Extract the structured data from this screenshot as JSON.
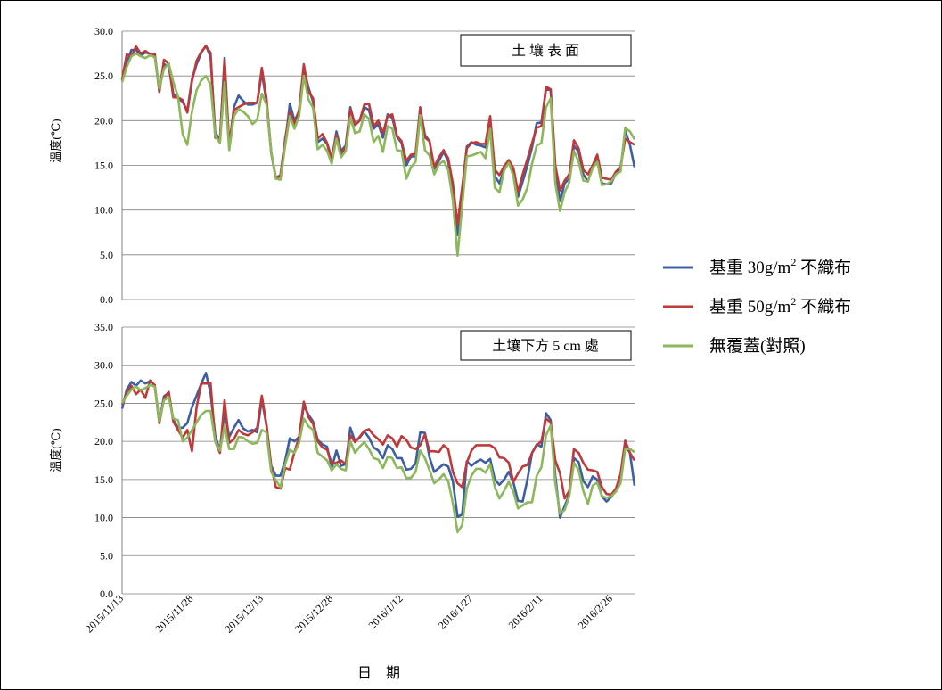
{
  "chart_data": [
    {
      "type": "line",
      "panel_label": "土 壤 表 面",
      "ylabel": "溫度(℃)",
      "ylim": [
        0,
        30
      ],
      "yticks": [
        "0.0",
        "5.0",
        "10.0",
        "15.0",
        "20.0",
        "25.0",
        "30.0"
      ],
      "grid": true,
      "x": [
        "2015/11/13",
        "2015/11/14",
        "2015/11/15",
        "2015/11/16",
        "2015/11/17",
        "2015/11/18",
        "2015/11/19",
        "2015/11/20",
        "2015/11/21",
        "2015/11/22",
        "2015/11/23",
        "2015/11/24",
        "2015/11/25",
        "2015/11/26",
        "2015/11/27",
        "2015/11/28",
        "2015/11/29",
        "2015/11/30",
        "2015/12/01",
        "2015/12/02",
        "2015/12/03",
        "2015/12/04",
        "2015/12/05",
        "2015/12/06",
        "2015/12/07",
        "2015/12/08",
        "2015/12/09",
        "2015/12/10",
        "2015/12/11",
        "2015/12/12",
        "2015/12/13",
        "2015/12/14",
        "2015/12/15",
        "2015/12/16",
        "2015/12/17",
        "2015/12/18",
        "2015/12/19",
        "2015/12/20",
        "2015/12/21",
        "2015/12/22",
        "2015/12/23",
        "2015/12/24",
        "2015/12/25",
        "2015/12/26",
        "2015/12/27",
        "2015/12/28",
        "2015/12/29",
        "2015/12/30",
        "2015/12/31",
        "2016/01/01",
        "2016/01/02",
        "2016/01/03",
        "2016/01/04",
        "2016/01/05",
        "2016/01/06",
        "2016/01/07",
        "2016/01/08",
        "2016/01/09",
        "2016/01/10",
        "2016/01/11",
        "2016/01/12",
        "2016/01/13",
        "2016/01/14",
        "2016/01/15",
        "2016/01/16",
        "2016/01/17",
        "2016/01/18",
        "2016/01/19",
        "2016/01/20",
        "2016/01/21",
        "2016/01/22",
        "2016/01/23",
        "2016/01/24",
        "2016/01/25",
        "2016/01/26",
        "2016/01/27",
        "2016/01/28",
        "2016/01/29",
        "2016/01/30",
        "2016/01/31",
        "2016/02/01",
        "2016/02/02",
        "2016/02/03",
        "2016/02/04",
        "2016/02/05",
        "2016/02/06",
        "2016/02/07",
        "2016/02/08",
        "2016/02/09",
        "2016/02/10",
        "2016/02/11",
        "2016/02/12",
        "2016/02/13",
        "2016/02/14",
        "2016/02/15",
        "2016/02/16",
        "2016/02/17",
        "2016/02/18",
        "2016/02/19",
        "2016/02/20",
        "2016/02/21",
        "2016/02/22",
        "2016/02/23",
        "2016/02/24",
        "2016/02/25",
        "2016/02/26",
        "2016/02/27",
        "2016/02/28",
        "2016/02/29",
        "2016/03/01",
        "2016/03/02"
      ],
      "series": [
        {
          "name": "series_30",
          "values": [
            24.5,
            26.5,
            27.9,
            27.9,
            27.3,
            27.6,
            27.5,
            27.4,
            23.4,
            26.3,
            26.1,
            23.0,
            22.5,
            22.1,
            21.1,
            24.6,
            26.3,
            27.6,
            28.4,
            27.1,
            18.7,
            17.8,
            27.0,
            17.0,
            21.5,
            22.8,
            22.2,
            21.8,
            21.8,
            22.0,
            25.4,
            22.1,
            16.5,
            13.6,
            13.8,
            17.5,
            21.9,
            20.0,
            21.0,
            25.9,
            23.7,
            22.1,
            17.6,
            18.0,
            17.4,
            15.6,
            18.8,
            16.6,
            17.2,
            21.5,
            19.5,
            20.0,
            21.5,
            21.2,
            19.1,
            19.6,
            18.1,
            20.7,
            20.3,
            18.2,
            17.5,
            15.0,
            16.0,
            16.0,
            21.4,
            18.4,
            17.7,
            14.6,
            15.5,
            16.5,
            15.5,
            12.0,
            7.2,
            12.2,
            17.1,
            17.6,
            17.3,
            17.2,
            17.0,
            19.9,
            13.8,
            13.0,
            14.5,
            15.5,
            14.5,
            11.5,
            13.2,
            15.0,
            17.0,
            19.7,
            19.8,
            23.5,
            23.4,
            14.5,
            11.0,
            13.0,
            13.5,
            17.2,
            16.5,
            14.0,
            13.2,
            14.8,
            15.9,
            13.0,
            12.9,
            13.0,
            14.1,
            14.5,
            18.9,
            17.3,
            14.8
          ]
        },
        {
          "name": "series_50",
          "values": [
            24.6,
            27.4,
            27.2,
            28.3,
            27.5,
            27.8,
            27.4,
            27.5,
            23.2,
            26.8,
            26.4,
            22.6,
            22.6,
            22.3,
            20.9,
            24.4,
            26.7,
            27.7,
            28.3,
            27.6,
            18.1,
            17.9,
            26.7,
            17.3,
            21.2,
            21.5,
            21.8,
            22.0,
            22.0,
            22.0,
            25.9,
            22.5,
            16.4,
            13.6,
            13.9,
            18.0,
            21.0,
            19.5,
            21.2,
            26.3,
            23.2,
            22.5,
            18.0,
            18.5,
            17.5,
            15.8,
            18.4,
            16.3,
            17.0,
            21.3,
            19.5,
            20.0,
            21.8,
            21.9,
            19.4,
            20.0,
            18.6,
            20.5,
            20.7,
            18.3,
            17.7,
            15.5,
            16.2,
            16.3,
            21.5,
            18.1,
            17.7,
            14.8,
            15.9,
            16.7,
            15.8,
            13.0,
            8.4,
            12.5,
            16.9,
            17.5,
            17.6,
            17.4,
            17.4,
            20.5,
            14.5,
            13.9,
            14.9,
            15.6,
            14.7,
            12.0,
            14.0,
            15.7,
            17.5,
            19.2,
            19.4,
            23.8,
            23.5,
            15.0,
            12.2,
            13.3,
            14.0,
            17.8,
            16.9,
            14.5,
            14.0,
            15.0,
            16.2,
            13.6,
            13.5,
            13.4,
            14.3,
            14.8,
            18.0,
            17.6,
            17.3
          ]
        },
        {
          "name": "series_none",
          "values": [
            24.3,
            26.0,
            27.2,
            27.5,
            27.2,
            27.0,
            27.3,
            27.1,
            23.6,
            25.8,
            26.4,
            24.3,
            22.7,
            18.5,
            17.3,
            21.0,
            23.4,
            24.5,
            25.0,
            24.0,
            18.3,
            17.5,
            24.3,
            16.7,
            20.5,
            21.3,
            21.0,
            20.5,
            19.6,
            20.1,
            23.0,
            21.8,
            16.6,
            13.5,
            13.4,
            17.2,
            20.5,
            19.1,
            20.5,
            25.0,
            22.4,
            21.4,
            16.8,
            17.3,
            16.6,
            15.2,
            18.0,
            15.9,
            16.6,
            20.3,
            18.6,
            18.8,
            20.7,
            20.2,
            17.6,
            18.3,
            16.5,
            19.4,
            19.1,
            16.7,
            16.6,
            13.5,
            14.8,
            15.4,
            20.6,
            16.7,
            16.1,
            14.0,
            15.1,
            15.5,
            14.5,
            11.1,
            4.9,
            10.5,
            16.0,
            16.1,
            16.3,
            16.5,
            15.8,
            19.1,
            12.5,
            12.0,
            14.4,
            15.3,
            13.8,
            10.5,
            11.2,
            12.5,
            15.2,
            17.2,
            17.5,
            21.5,
            22.5,
            13.0,
            9.9,
            12.0,
            13.1,
            16.6,
            15.4,
            13.3,
            13.2,
            14.7,
            15.4,
            12.8,
            12.9,
            13.2,
            14.0,
            14.3,
            19.2,
            18.8,
            17.9
          ]
        }
      ]
    },
    {
      "type": "line",
      "panel_label": "土壤下方 5 cm 處",
      "ylabel": "溫度(℃)",
      "ylim": [
        0,
        35
      ],
      "yticks": [
        "0.0",
        "5.0",
        "10.0",
        "15.0",
        "20.0",
        "25.0",
        "30.0",
        "35.0"
      ],
      "grid": true,
      "x_tick_labels": [
        "2015/11/13",
        "2015/11/28",
        "2015/12/13",
        "2015/12/28",
        "2016/1/12",
        "2016/1/27",
        "2016/2/11",
        "2016/2/26"
      ],
      "xlabel": "日　期",
      "series": [
        {
          "name": "series_30",
          "values": [
            24.3,
            26.8,
            27.8,
            27.3,
            28.0,
            27.6,
            27.9,
            27.4,
            22.6,
            25.9,
            26.4,
            22.8,
            21.8,
            21.8,
            22.4,
            24.5,
            26.0,
            27.6,
            29.0,
            26.3,
            20.8,
            18.7,
            24.0,
            20.6,
            21.8,
            22.8,
            21.7,
            21.3,
            21.5,
            21.2,
            25.5,
            22.1,
            16.8,
            15.5,
            15.5,
            17.5,
            20.4,
            20.0,
            20.6,
            24.7,
            23.5,
            22.6,
            20.2,
            19.6,
            19.3,
            16.5,
            18.8,
            16.8,
            17.0,
            21.8,
            20.0,
            20.5,
            21.3,
            20.5,
            19.2,
            18.8,
            17.8,
            19.5,
            19.0,
            17.8,
            17.8,
            16.3,
            16.4,
            17.1,
            21.2,
            21.1,
            17.9,
            16.0,
            16.5,
            17.0,
            16.7,
            14.8,
            10.1,
            10.4,
            17.4,
            16.8,
            17.3,
            17.6,
            17.2,
            17.7,
            15.0,
            14.3,
            15.0,
            16.0,
            14.6,
            12.2,
            12.1,
            15.0,
            18.5,
            19.6,
            19.3,
            23.7,
            22.8,
            15.5,
            10.0,
            11.5,
            13.0,
            17.8,
            17.3,
            14.8,
            14.0,
            15.4,
            15.0,
            12.8,
            12.1,
            12.7,
            13.6,
            15.2,
            19.5,
            18.5,
            14.2
          ]
        },
        {
          "name": "series_50",
          "values": [
            24.8,
            26.3,
            27.3,
            26.2,
            26.8,
            25.7,
            28.0,
            27.4,
            22.4,
            25.6,
            26.5,
            22.6,
            21.5,
            20.5,
            21.5,
            18.7,
            24.5,
            27.6,
            27.6,
            27.6,
            20.0,
            18.5,
            25.4,
            19.8,
            20.3,
            21.5,
            21.0,
            20.8,
            21.2,
            21.8,
            26.0,
            22.2,
            16.7,
            14.0,
            13.8,
            16.5,
            16.3,
            18.6,
            20.6,
            25.2,
            23.2,
            22.3,
            20.0,
            19.2,
            18.9,
            17.1,
            17.2,
            17.5,
            17.0,
            20.8,
            19.9,
            20.6,
            21.4,
            21.6,
            20.8,
            20.3,
            19.6,
            20.8,
            20.4,
            19.3,
            20.7,
            20.2,
            19.2,
            19.0,
            19.5,
            20.9,
            18.7,
            18.7,
            18.6,
            19.5,
            19.0,
            16.0,
            14.5,
            14.0,
            17.2,
            18.8,
            19.5,
            19.5,
            19.5,
            19.5,
            19.1,
            17.9,
            17.8,
            17.2,
            14.7,
            15.8,
            16.7,
            16.9,
            18.5,
            19.5,
            20.0,
            23.0,
            22.5,
            17.5,
            15.8,
            12.5,
            13.5,
            19.0,
            18.5,
            17.2,
            16.3,
            16.2,
            16.0,
            14.0,
            13.1,
            13.0,
            13.8,
            15.7,
            20.1,
            18.5,
            17.5
          ]
        },
        {
          "name": "series_none",
          "values": [
            25.0,
            26.0,
            26.8,
            27.2,
            26.7,
            27.0,
            27.4,
            27.2,
            22.7,
            25.4,
            25.8,
            23.0,
            22.8,
            20.0,
            20.5,
            21.5,
            22.5,
            23.5,
            24.0,
            24.0,
            20.0,
            18.8,
            22.0,
            19.0,
            19.0,
            20.6,
            20.5,
            20.0,
            19.7,
            19.8,
            21.5,
            21.2,
            16.0,
            14.9,
            14.0,
            17.0,
            18.9,
            18.5,
            19.8,
            23.0,
            22.0,
            21.5,
            18.5,
            18.0,
            17.5,
            16.2,
            17.0,
            16.4,
            16.2,
            20.0,
            18.5,
            19.3,
            19.9,
            19.0,
            17.8,
            17.6,
            16.5,
            18.0,
            17.8,
            16.5,
            16.6,
            15.2,
            15.2,
            16.0,
            18.8,
            17.8,
            16.2,
            14.5,
            15.0,
            15.7,
            14.8,
            11.9,
            8.1,
            9.0,
            13.8,
            15.5,
            16.4,
            16.4,
            15.9,
            17.0,
            14.0,
            12.5,
            13.5,
            14.7,
            13.4,
            11.2,
            11.6,
            12.0,
            12.0,
            15.5,
            16.6,
            20.8,
            22.1,
            14.5,
            10.5,
            11.0,
            12.8,
            17.2,
            16.2,
            13.5,
            11.8,
            14.2,
            14.6,
            12.8,
            12.6,
            12.8,
            13.4,
            14.5,
            19.0,
            19.0,
            18.6
          ]
        }
      ]
    }
  ],
  "legend": [
    {
      "key": "series_30",
      "color": "#3C5FA4",
      "pre": "基重 30g/m",
      "sup": "2",
      "post": " 不織布"
    },
    {
      "key": "series_50",
      "color": "#BE3A3A",
      "pre": "基重 50g/m",
      "sup": "2",
      "post": " 不織布"
    },
    {
      "key": "series_none",
      "color": "#8CB75A",
      "pre": "無覆蓋(對照)",
      "sup": "",
      "post": ""
    }
  ]
}
